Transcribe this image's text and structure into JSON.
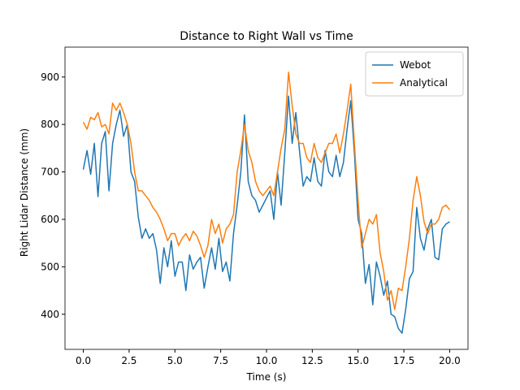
{
  "chart_data": {
    "type": "line",
    "title": "Distance to Right Wall vs Time",
    "x_label": "Time (s)",
    "y_label": "Right Lidar Distance (mm)",
    "x": [
      0.0,
      0.2,
      0.4,
      0.6,
      0.8,
      1.0,
      1.2,
      1.4,
      1.6,
      1.8,
      2.0,
      2.2,
      2.4,
      2.6,
      2.8,
      3.0,
      3.2,
      3.4,
      3.6,
      3.8,
      4.0,
      4.2,
      4.4,
      4.6,
      4.8,
      5.0,
      5.2,
      5.4,
      5.6,
      5.8,
      6.0,
      6.2,
      6.4,
      6.6,
      6.8,
      7.0,
      7.2,
      7.4,
      7.6,
      7.8,
      8.0,
      8.2,
      8.4,
      8.6,
      8.8,
      9.0,
      9.2,
      9.4,
      9.6,
      9.8,
      10.0,
      10.2,
      10.4,
      10.6,
      10.8,
      11.0,
      11.2,
      11.4,
      11.6,
      11.8,
      12.0,
      12.2,
      12.4,
      12.6,
      12.8,
      13.0,
      13.2,
      13.4,
      13.6,
      13.8,
      14.0,
      14.2,
      14.4,
      14.6,
      14.8,
      15.0,
      15.2,
      15.4,
      15.6,
      15.8,
      16.0,
      16.2,
      16.4,
      16.6,
      16.8,
      17.0,
      17.2,
      17.4,
      17.6,
      17.8,
      18.0,
      18.2,
      18.4,
      18.6,
      18.8,
      19.0,
      19.2,
      19.4,
      19.6,
      19.8,
      20.0
    ],
    "series": [
      {
        "name": "Webot",
        "color": "#1f77b4",
        "values": [
          705,
          745,
          695,
          760,
          648,
          760,
          785,
          660,
          760,
          800,
          830,
          775,
          800,
          700,
          680,
          605,
          560,
          580,
          560,
          570,
          535,
          465,
          540,
          500,
          555,
          480,
          510,
          510,
          450,
          525,
          495,
          510,
          520,
          455,
          500,
          540,
          495,
          560,
          490,
          510,
          470,
          570,
          630,
          700,
          820,
          680,
          650,
          640,
          615,
          630,
          645,
          660,
          600,
          700,
          630,
          740,
          860,
          760,
          825,
          745,
          670,
          690,
          680,
          730,
          680,
          670,
          745,
          700,
          690,
          735,
          690,
          720,
          790,
          850,
          740,
          600,
          570,
          465,
          505,
          420,
          510,
          480,
          440,
          470,
          400,
          395,
          370,
          360,
          410,
          475,
          490,
          625,
          560,
          535,
          580,
          600,
          520,
          515,
          580,
          590,
          595
        ]
      },
      {
        "name": "Analytical",
        "color": "#ff7f0e",
        "values": [
          805,
          790,
          815,
          810,
          825,
          795,
          800,
          780,
          845,
          830,
          845,
          825,
          800,
          760,
          700,
          660,
          660,
          650,
          640,
          625,
          615,
          600,
          580,
          555,
          570,
          570,
          545,
          560,
          570,
          555,
          575,
          565,
          545,
          520,
          545,
          600,
          570,
          590,
          550,
          580,
          590,
          610,
          700,
          745,
          800,
          745,
          720,
          680,
          660,
          650,
          660,
          670,
          650,
          700,
          750,
          790,
          910,
          840,
          780,
          760,
          760,
          730,
          720,
          760,
          730,
          720,
          740,
          760,
          760,
          780,
          740,
          780,
          830,
          885,
          760,
          640,
          540,
          570,
          600,
          590,
          610,
          530,
          490,
          430,
          450,
          410,
          455,
          450,
          500,
          560,
          640,
          690,
          650,
          595,
          570,
          590,
          590,
          600,
          625,
          630,
          620
        ]
      }
    ],
    "xlim": [
      -1,
      21
    ],
    "ylim": [
      326,
      963
    ],
    "xticks": [
      {
        "value": 0,
        "label": "0.0"
      },
      2.5,
      {
        "value": 5,
        "label": "5.0"
      },
      7.5,
      {
        "value": 10,
        "label": "10.0"
      },
      12.5,
      {
        "value": 15,
        "label": "15.0"
      },
      17.5,
      {
        "value": 20,
        "label": "20.0"
      }
    ],
    "yticks": [
      400,
      500,
      600,
      700,
      800,
      900
    ],
    "legend": "upper right"
  }
}
